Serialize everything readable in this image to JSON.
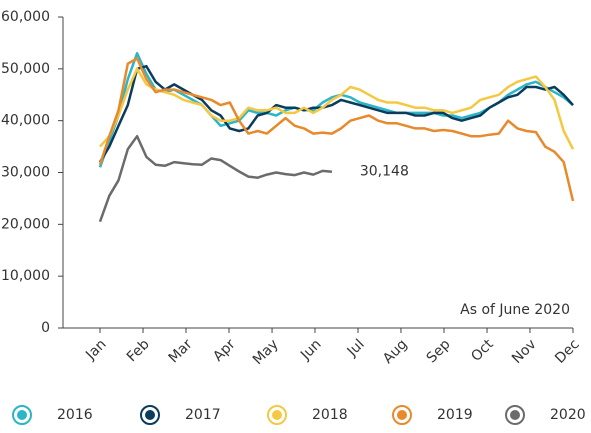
{
  "chart_data": {
    "type": "line",
    "annotation": "As of June 2020",
    "x": [
      1,
      2,
      3,
      4,
      5,
      6,
      7,
      8,
      9,
      10,
      11,
      12,
      13,
      14,
      15,
      16,
      17,
      18,
      19,
      20,
      21,
      22,
      23,
      24,
      25,
      26,
      27,
      28,
      29,
      30,
      31,
      32,
      33,
      34,
      35,
      36,
      37,
      38,
      39,
      40,
      41,
      42,
      43,
      44,
      45,
      46,
      47,
      48,
      49,
      50,
      51,
      52
    ],
    "xlim": [
      1,
      52
    ],
    "xticks": [
      {
        "value": 1,
        "label": "Jan"
      },
      {
        "value": 5.64,
        "label": "Feb"
      },
      {
        "value": 10.27,
        "label": "Mar"
      },
      {
        "value": 14.91,
        "label": "Apr"
      },
      {
        "value": 19.55,
        "label": "May"
      },
      {
        "value": 24.18,
        "label": "Jun"
      },
      {
        "value": 28.82,
        "label": "Jul"
      },
      {
        "value": 33.45,
        "label": "Aug"
      },
      {
        "value": 38.09,
        "label": "Sep"
      },
      {
        "value": 42.73,
        "label": "Oct"
      },
      {
        "value": 47.36,
        "label": "Nov"
      },
      {
        "value": 52,
        "label": "Dec"
      }
    ],
    "ylim": [
      0,
      60000
    ],
    "yticks": [
      0,
      {
        "value": 10000,
        "label": "10,000"
      },
      {
        "value": 20000,
        "label": "20,000"
      },
      {
        "value": 30000,
        "label": "30,000"
      },
      {
        "value": 40000,
        "label": "40,000"
      },
      {
        "value": 50000,
        "label": "50,000"
      },
      {
        "value": 60000,
        "label": "60,000"
      }
    ],
    "legend": "bottom",
    "series": [
      {
        "name": "2016",
        "color": "#2bb5c8",
        "values": [
          31000,
          36000,
          41000,
          48000,
          53000,
          49000,
          46000,
          45500,
          46000,
          45000,
          44000,
          43000,
          41000,
          39000,
          39500,
          40000,
          42000,
          41500,
          41500,
          41000,
          42000,
          42500,
          42000,
          42000,
          43500,
          44500,
          45000,
          44500,
          43500,
          43000,
          42500,
          42000,
          41500,
          41500,
          41500,
          41500,
          41500,
          41000,
          41000,
          40500,
          41000,
          41500,
          42500,
          43500,
          45000,
          46000,
          47000,
          47500,
          46500,
          45500,
          44500,
          43000
        ]
      },
      {
        "name": "2017",
        "color": "#0b3c5d",
        "values": [
          32000,
          35000,
          39000,
          43000,
          50000,
          50500,
          47500,
          46000,
          47000,
          46000,
          45000,
          44000,
          42000,
          41000,
          38500,
          38000,
          38500,
          41000,
          41500,
          43000,
          42500,
          42500,
          42000,
          42500,
          42500,
          43000,
          44000,
          43500,
          43000,
          42500,
          42000,
          41500,
          41500,
          41500,
          41000,
          41000,
          41500,
          41500,
          40500,
          40000,
          40500,
          41000,
          42500,
          43500,
          44500,
          45000,
          46500,
          46500,
          46000,
          46500,
          45000,
          43000
        ]
      },
      {
        "name": "2018",
        "color": "#f5c842",
        "values": [
          35000,
          37000,
          41000,
          46000,
          50000,
          47000,
          46000,
          45500,
          45000,
          44000,
          43500,
          43000,
          41000,
          40000,
          40000,
          40500,
          42500,
          42000,
          42000,
          42500,
          41500,
          41500,
          42500,
          41500,
          42500,
          44000,
          45000,
          46500,
          46000,
          45000,
          44000,
          43500,
          43500,
          43000,
          42500,
          42500,
          42000,
          42000,
          41500,
          42000,
          42500,
          44000,
          44500,
          45000,
          46500,
          47500,
          48000,
          48500,
          46500,
          44000,
          38000,
          34500
        ]
      },
      {
        "name": "2019",
        "color": "#e8892b",
        "values": [
          31500,
          37000,
          42000,
          51000,
          52000,
          48000,
          45500,
          46000,
          46000,
          45500,
          45000,
          44500,
          44000,
          43000,
          43500,
          40000,
          37500,
          38000,
          37500,
          39000,
          40500,
          39000,
          38500,
          37500,
          37700,
          37500,
          38500,
          40000,
          40500,
          41000,
          40000,
          39500,
          39500,
          39000,
          38500,
          38500,
          38000,
          38200,
          38000,
          37500,
          37000,
          37000,
          37300,
          37500,
          40000,
          38500,
          38000,
          37800,
          35000,
          34000,
          32000,
          24500
        ]
      },
      {
        "name": "2020",
        "color": "#6b6b6b",
        "values": [
          20500,
          25500,
          28500,
          34500,
          37000,
          33000,
          31500,
          31300,
          32000,
          31800,
          31600,
          31500,
          32700,
          32400,
          31300,
          30200,
          29200,
          29000,
          29600,
          30000,
          29700,
          29500,
          30000,
          29600,
          30300,
          30148,
          null,
          null,
          null,
          null,
          null,
          null,
          null,
          null,
          null,
          null,
          null,
          null,
          null,
          null,
          null,
          null,
          null,
          null,
          null,
          null,
          null,
          null,
          null,
          null,
          null,
          null
        ],
        "value_labels": [
          null,
          null,
          null,
          null,
          null,
          null,
          null,
          null,
          null,
          null,
          null,
          null,
          null,
          null,
          null,
          null,
          null,
          null,
          null,
          null,
          null,
          null,
          null,
          null,
          null,
          "30,148",
          null,
          null,
          null,
          null,
          null,
          null,
          null,
          null,
          null,
          null,
          null,
          null,
          null,
          null,
          null,
          null,
          null,
          null,
          null,
          null,
          null,
          null,
          null,
          null,
          null,
          null
        ]
      }
    ]
  }
}
